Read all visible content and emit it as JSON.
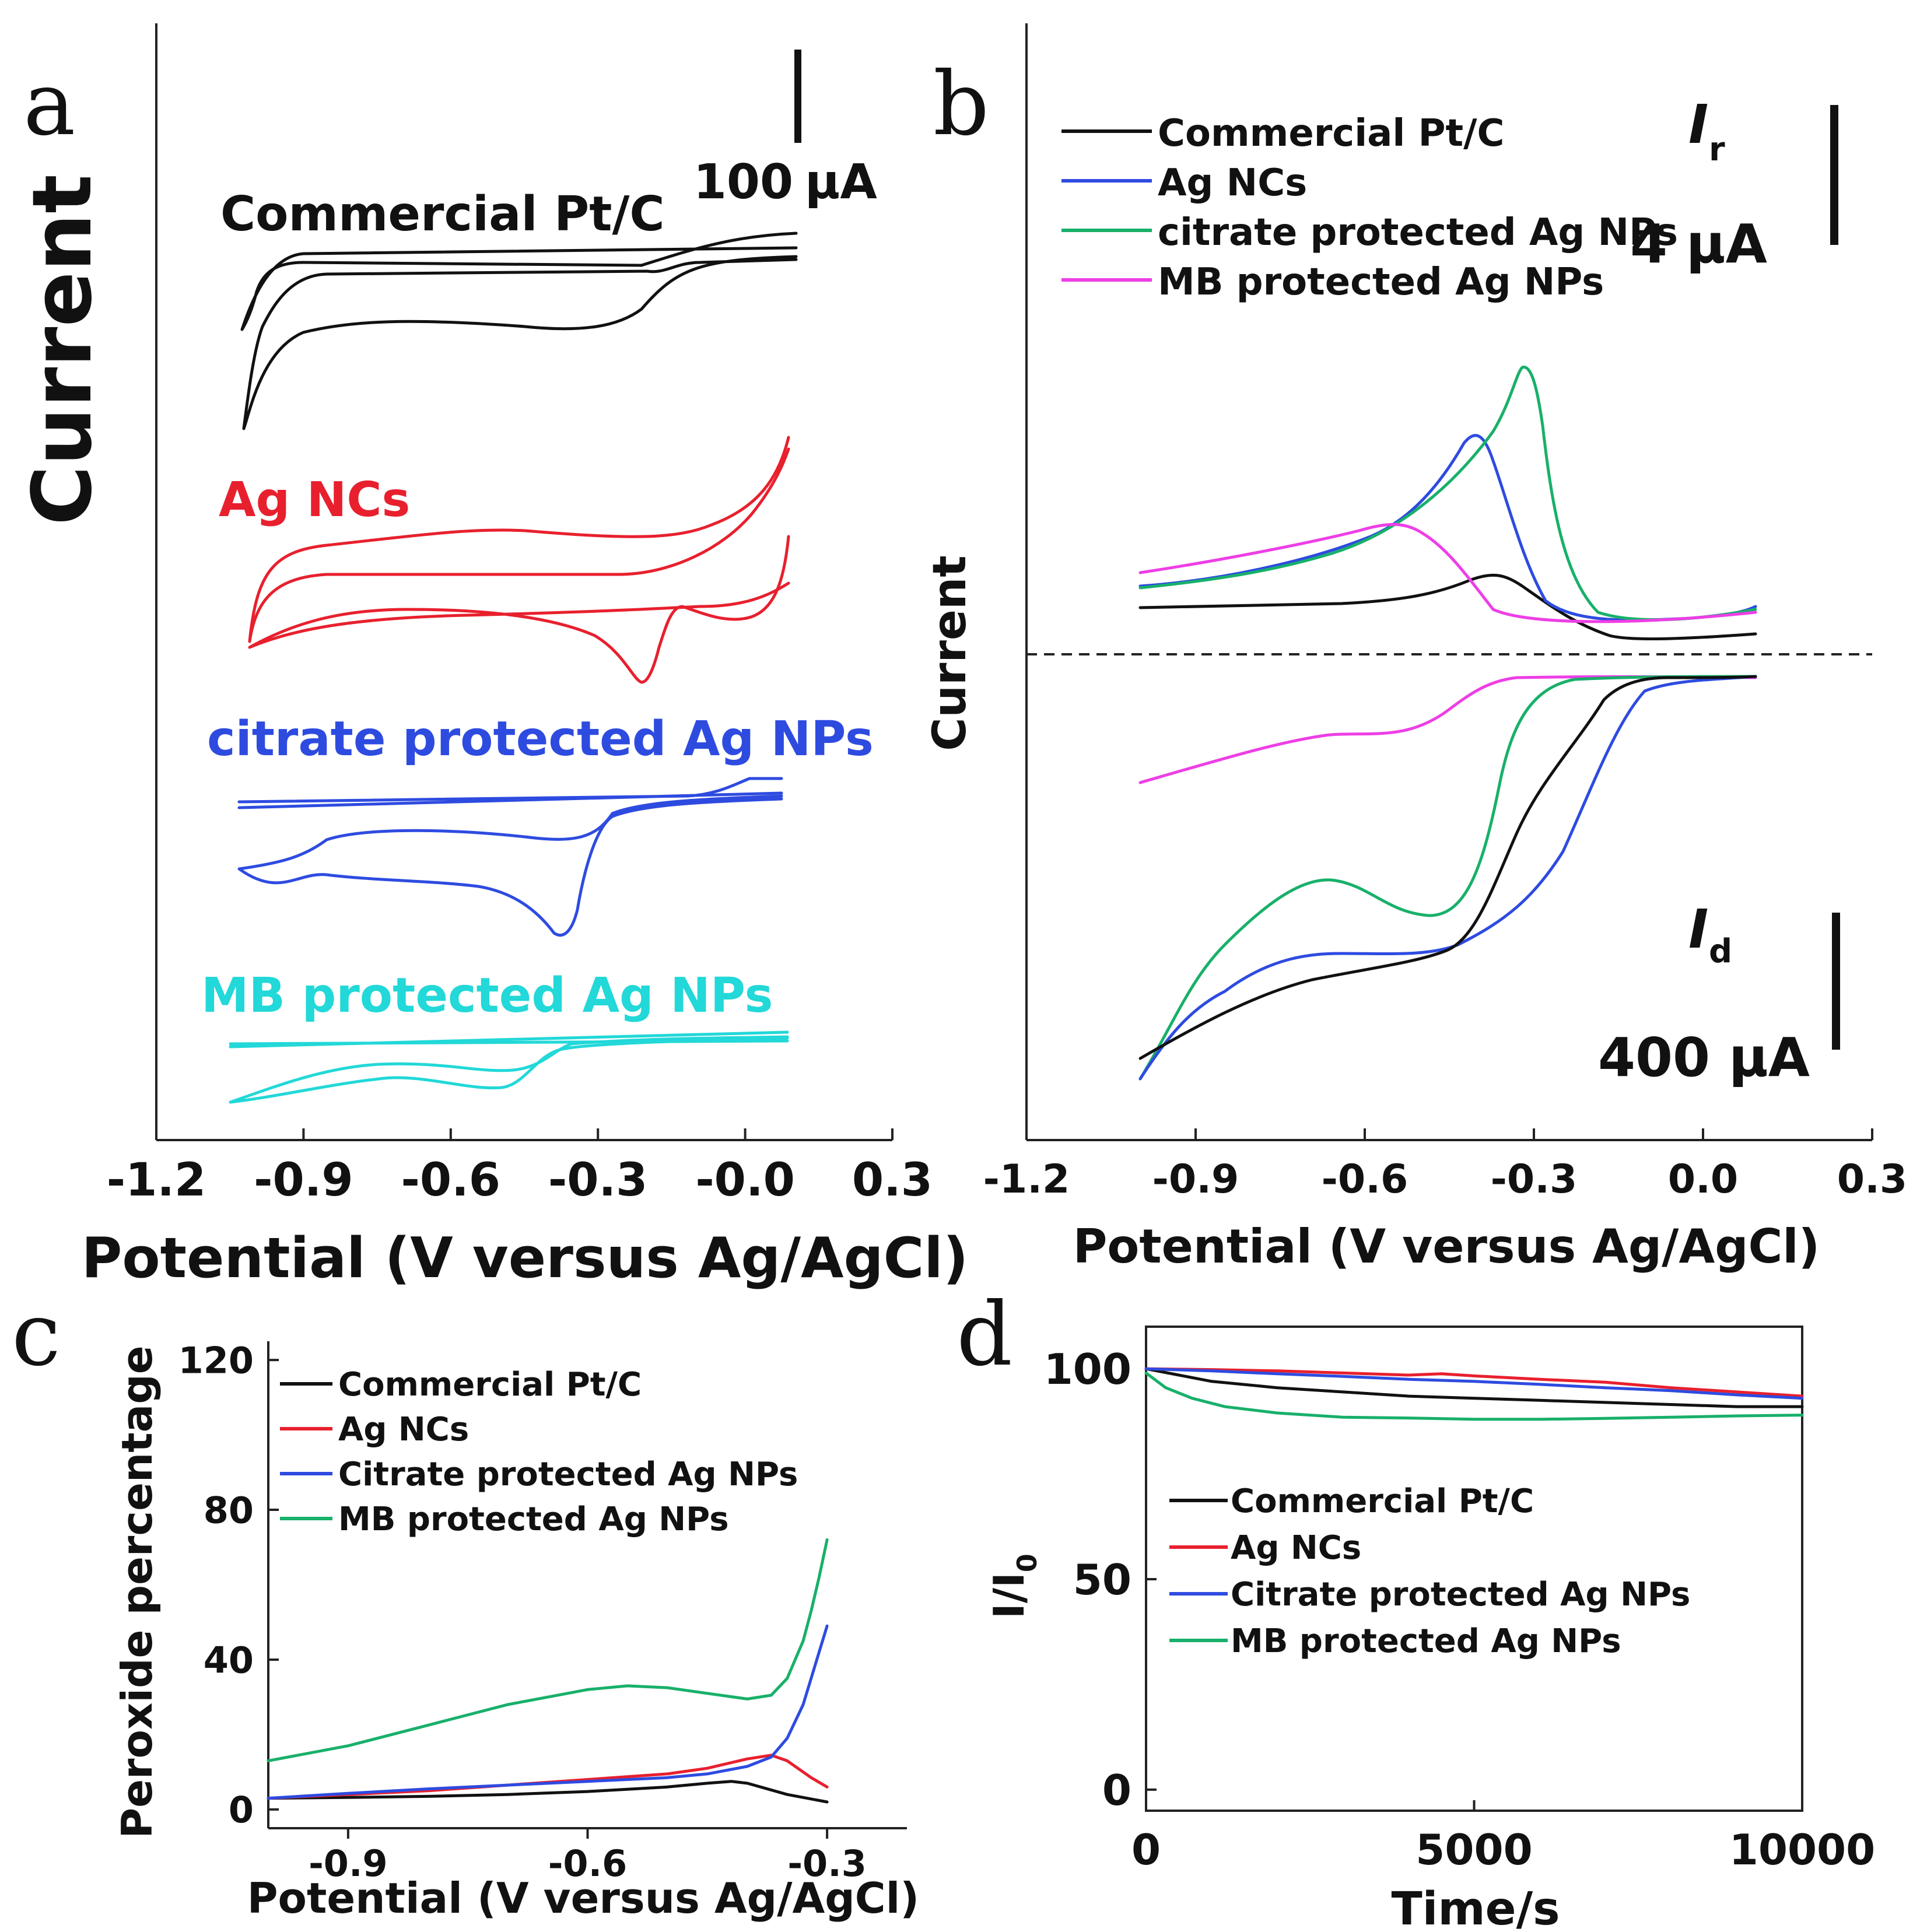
{
  "chart_data": [
    {
      "panel": "a",
      "type": "line",
      "ylabel": "Current",
      "xlabel": "Potential (V versus Ag/AgCl)",
      "xlim": [
        -1.2,
        0.3
      ],
      "xticks": [
        "-1.2",
        "-0.9",
        "-0.6",
        "-0.3",
        "-0.0",
        "0.3"
      ],
      "scale_bar": {
        "value": "100",
        "unit": "μA"
      },
      "series": [
        {
          "name": "Commercial Pt/C",
          "color": "#111111"
        },
        {
          "name": "Ag NCs",
          "color": "#e8202e"
        },
        {
          "name": "citrate protected Ag NPs",
          "color": "#2e4be0"
        },
        {
          "name": "MB protected Ag NPs",
          "color": "#22d8d8"
        }
      ]
    },
    {
      "panel": "b",
      "type": "line",
      "ylabel": "Current",
      "xlabel": "Potential (V versus Ag/AgCl)",
      "xlim": [
        -1.2,
        0.3
      ],
      "xticks": [
        "-1.2",
        "-0.9",
        "-0.6",
        "-0.3",
        "0.0",
        "0.3"
      ],
      "ring_label": "I",
      "ring_sub": "r",
      "disk_label": "I",
      "disk_sub": "d",
      "ring_scale": "4 μA",
      "disk_scale": "400 μA",
      "series": [
        {
          "name": "Commercial Pt/C",
          "color": "#111111"
        },
        {
          "name": "Ag NCs",
          "color": "#2e4be0"
        },
        {
          "name": "citrate protected Ag NPs",
          "color": "#18b06a"
        },
        {
          "name": "MB protected Ag NPs",
          "color": "#ee3ee6"
        }
      ]
    },
    {
      "panel": "c",
      "type": "line",
      "ylabel": "Peroxide percentage",
      "xlabel": "Potential (V versus Ag/AgCl)",
      "xlim": [
        -1.0,
        -0.2
      ],
      "ylim": [
        -5,
        125
      ],
      "xticks": [
        -0.9,
        -0.6,
        -0.3
      ],
      "yticks": [
        0,
        40,
        80,
        120
      ],
      "series": [
        {
          "name": "Commercial Pt/C",
          "color": "#111111",
          "x": [
            -1.0,
            -0.9,
            -0.8,
            -0.7,
            -0.6,
            -0.5,
            -0.45,
            -0.42,
            -0.4,
            -0.35,
            -0.3
          ],
          "y": [
            3,
            3.2,
            3.5,
            4,
            4.8,
            6,
            7,
            7.5,
            7,
            4,
            2
          ]
        },
        {
          "name": "Ag NCs",
          "color": "#e8202e",
          "x": [
            -1.0,
            -0.9,
            -0.8,
            -0.7,
            -0.6,
            -0.5,
            -0.45,
            -0.4,
            -0.37,
            -0.35,
            -0.32,
            -0.3
          ],
          "y": [
            3,
            4,
            5,
            6.5,
            8,
            9.5,
            11,
            13.5,
            14.5,
            13,
            8.5,
            6
          ]
        },
        {
          "name": "Citrate protected Ag NPs",
          "color": "#2e4be0",
          "x": [
            -1.0,
            -0.9,
            -0.8,
            -0.7,
            -0.6,
            -0.5,
            -0.45,
            -0.4,
            -0.37,
            -0.35,
            -0.33,
            -0.31,
            -0.3
          ],
          "y": [
            3,
            4.3,
            5.5,
            6.5,
            7.5,
            8.5,
            9.5,
            11.5,
            14,
            19,
            28,
            42,
            49
          ]
        },
        {
          "name": "MB protected Ag NPs",
          "color": "#18b06a",
          "x": [
            -1.0,
            -0.9,
            -0.8,
            -0.7,
            -0.6,
            -0.55,
            -0.5,
            -0.45,
            -0.4,
            -0.37,
            -0.35,
            -0.33,
            -0.32,
            -0.31,
            -0.3
          ],
          "y": [
            13,
            17,
            22.5,
            28,
            32,
            33,
            32.5,
            31,
            29.5,
            30.5,
            35,
            45,
            53,
            62,
            72
          ]
        }
      ]
    },
    {
      "panel": "d",
      "type": "line",
      "ylabel": "I/I",
      "ylabel_sub": "0",
      "xlabel": "Time/s",
      "xlim": [
        0,
        10000
      ],
      "ylim": [
        -5,
        110
      ],
      "xticks": [
        0,
        5000,
        10000
      ],
      "yticks": [
        0,
        50,
        100
      ],
      "series": [
        {
          "name": "Commercial Pt/C",
          "color": "#111111",
          "x": [
            0,
            500,
            1000,
            2000,
            3000,
            4000,
            5000,
            6000,
            7000,
            8000,
            9000,
            10000
          ],
          "y": [
            100,
            98.5,
            97,
            95.5,
            94.5,
            93.5,
            93,
            92.5,
            92,
            91.5,
            91,
            91
          ]
        },
        {
          "name": "Ag NCs",
          "color": "#e8202e",
          "x": [
            0,
            1000,
            2000,
            3000,
            4000,
            4500,
            5000,
            6000,
            7000,
            8000,
            9000,
            10000
          ],
          "y": [
            100,
            99.8,
            99.5,
            99,
            98.5,
            98.8,
            98.3,
            97.5,
            96.8,
            95.5,
            94.5,
            93.5
          ]
        },
        {
          "name": "Citrate protected Ag NPs",
          "color": "#2e4be0",
          "x": [
            0,
            1000,
            2000,
            3000,
            4000,
            5000,
            6000,
            7000,
            8000,
            9000,
            10000
          ],
          "y": [
            100,
            99.5,
            98.8,
            98.2,
            97.5,
            97,
            96.3,
            95.5,
            94.8,
            93.8,
            93
          ]
        },
        {
          "name": "MB protected Ag NPs",
          "color": "#18b06a",
          "x": [
            0,
            300,
            700,
            1200,
            2000,
            3000,
            4000,
            5000,
            6000,
            7000,
            8000,
            9000,
            10000
          ],
          "y": [
            99,
            95.5,
            93,
            91,
            89.5,
            88.5,
            88.3,
            88,
            88,
            88.2,
            88.5,
            88.8,
            89
          ]
        }
      ]
    }
  ]
}
